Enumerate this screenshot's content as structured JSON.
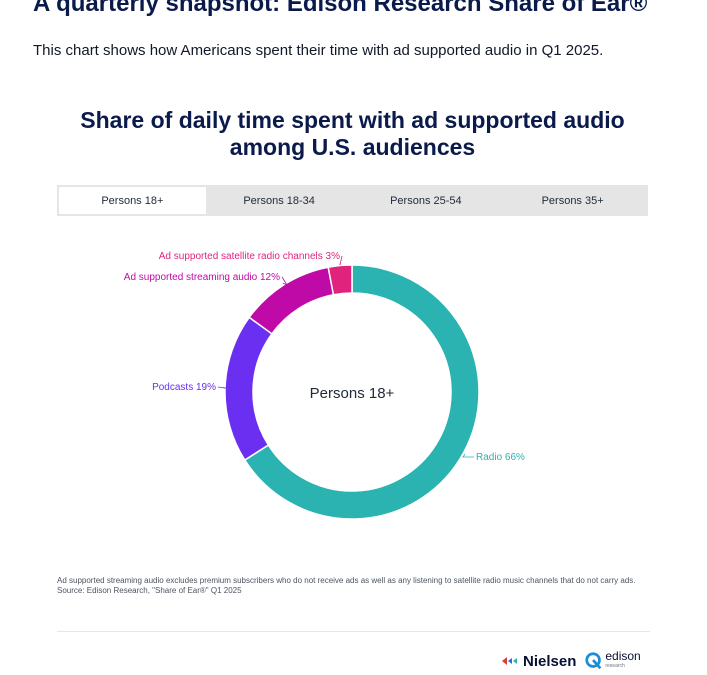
{
  "page": {
    "title": "A quarterly snapshot: Edison Research Share of Ear®",
    "subtitle": "This chart shows how Americans spent their time with ad supported audio in Q1 2025."
  },
  "chart_title": "Share of daily time spent with ad supported audio among U.S. audiences",
  "tabs": [
    {
      "label": "Persons 18+",
      "active": true
    },
    {
      "label": "Persons 18-34",
      "active": false
    },
    {
      "label": "Persons 25-54",
      "active": false
    },
    {
      "label": "Persons 35+",
      "active": false
    }
  ],
  "chart_data": {
    "type": "pie",
    "variant": "donut",
    "center_label": "Persons 18+",
    "slices": [
      {
        "name": "Radio",
        "value": 66,
        "label": "Radio 66%",
        "color": "#2bb3b1"
      },
      {
        "name": "Podcasts",
        "value": 19,
        "label": "Podcasts 19%",
        "color": "#6a2ff0"
      },
      {
        "name": "Ad supported streaming audio",
        "value": 12,
        "label": "Ad supported streaming audio 12%",
        "color": "#c00aa8"
      },
      {
        "name": "Ad supported satellite radio channels",
        "value": 3,
        "label": "Ad supported satellite radio channels 3%",
        "color": "#e0247d"
      }
    ]
  },
  "footnote": {
    "note": "Ad supported streaming audio excludes premium subscribers who do not receive ads as well as any listening to satellite radio music channels that do not carry ads.",
    "source": "Source: Edison Research, \"Share of Ear®\" Q1 2025"
  },
  "logos": {
    "nielsen": "Nielsen",
    "edison": "edison",
    "edison_sub": "research"
  }
}
